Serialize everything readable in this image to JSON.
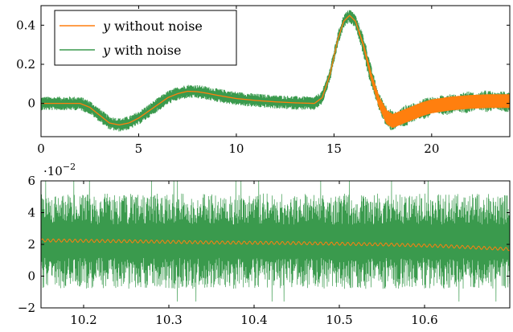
{
  "chart_data": [
    {
      "type": "line",
      "title": "",
      "xlabel": "",
      "ylabel": "",
      "xlim": [
        0,
        24
      ],
      "ylim": [
        -0.17,
        0.5
      ],
      "xticks": [
        0,
        5,
        10,
        15,
        20
      ],
      "xtick_labels": [
        "0",
        "5",
        "10",
        "15",
        "20"
      ],
      "yticks": [
        0,
        0.2,
        0.4
      ],
      "ytick_labels": [
        "0",
        "0.2",
        "0.4"
      ],
      "grid": false,
      "legend_position": "top-left",
      "series": [
        {
          "name": "y without noise",
          "name_var": "y",
          "name_rest": " without noise",
          "color": "#ff7f0e",
          "x": [
            0,
            1,
            2,
            2.5,
            3,
            3.5,
            4,
            4.5,
            5,
            5.5,
            6,
            6.5,
            7,
            7.5,
            8,
            8.5,
            9,
            10,
            11,
            12,
            13,
            14,
            14.4,
            14.8,
            15.2,
            15.5,
            15.8,
            16.1,
            16.5,
            16.9,
            17.3,
            17.7,
            18,
            18.5,
            19,
            19.5,
            20,
            21,
            22,
            23,
            24
          ],
          "y": [
            0,
            0,
            0,
            -0.02,
            -0.06,
            -0.1,
            -0.11,
            -0.1,
            -0.075,
            -0.04,
            -0.005,
            0.03,
            0.05,
            0.062,
            0.06,
            0.052,
            0.042,
            0.025,
            0.015,
            0.008,
            0.003,
            0.0,
            0.03,
            0.15,
            0.33,
            0.42,
            0.45,
            0.42,
            0.3,
            0.14,
            0.01,
            -0.07,
            -0.09,
            -0.07,
            -0.05,
            -0.03,
            -0.015,
            0.0,
            0.008,
            0.012,
            0.012
          ],
          "oscillation_amplitude_after_x16": 0.035
        },
        {
          "name": "y with noise",
          "name_var": "y",
          "name_rest": " with noise",
          "color": "#3a9a4d",
          "noise_amplitude": 0.035
        }
      ]
    },
    {
      "type": "line",
      "title": "",
      "xlabel": "",
      "ylabel": "",
      "xlim": [
        10.15,
        10.7
      ],
      "ylim": [
        -2,
        6
      ],
      "y_scale_label": "·10⁻²",
      "y_scale_label_base": "·10",
      "y_scale_label_exp": "−2",
      "xticks": [
        10.2,
        10.3,
        10.4,
        10.5,
        10.6
      ],
      "xtick_labels": [
        "10.2",
        "10.3",
        "10.4",
        "10.5",
        "10.6"
      ],
      "yticks": [
        -2,
        0,
        2,
        4,
        6
      ],
      "ytick_labels": [
        "−2",
        "0",
        "2",
        "4",
        "6"
      ],
      "grid": false,
      "series": [
        {
          "name": "y without noise",
          "color": "#ff7f0e",
          "x": [
            10.15,
            10.25,
            10.35,
            10.45,
            10.55,
            10.62,
            10.7
          ],
          "y": [
            2.25,
            2.2,
            2.12,
            2.08,
            2.0,
            1.9,
            1.7
          ],
          "ripple_amplitude": 0.1
        },
        {
          "name": "y with noise",
          "color": "#3a9a4d",
          "noise_center": 2.2,
          "noise_amplitude": 3.0,
          "noise_spike_max": 3.8
        }
      ]
    }
  ]
}
